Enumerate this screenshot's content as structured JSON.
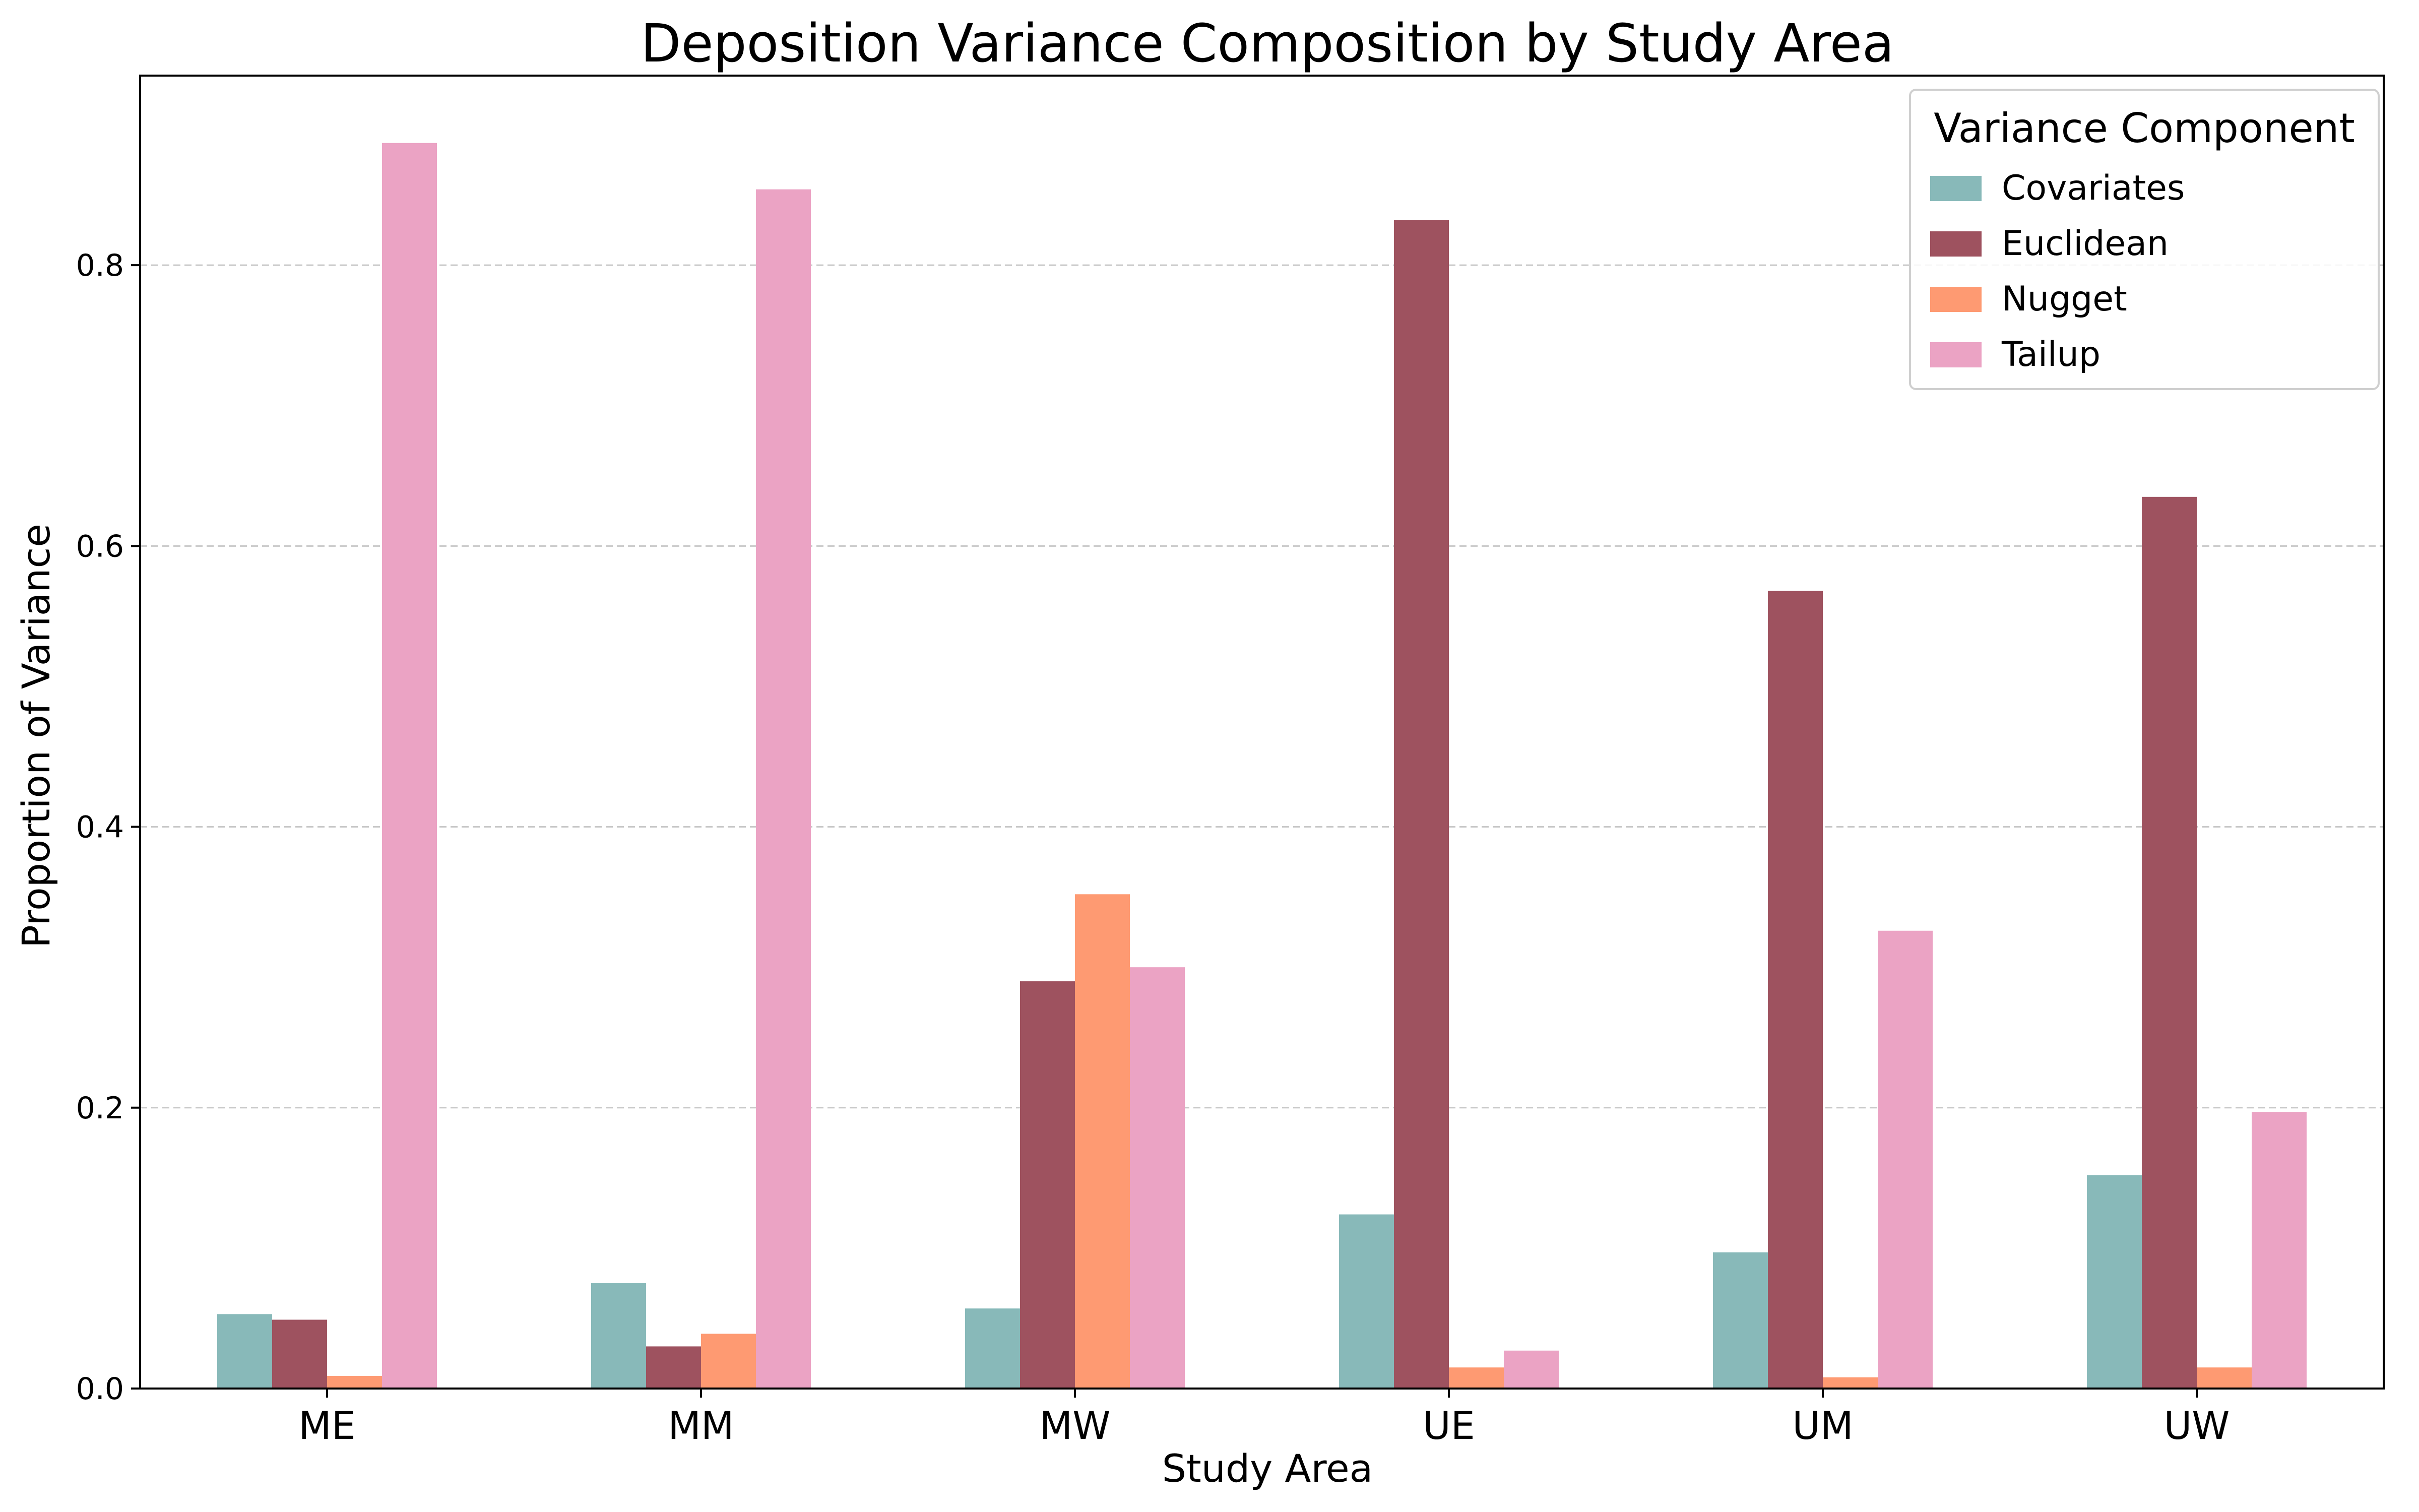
{
  "chart_data": {
    "type": "bar",
    "title": "Deposition Variance Composition by Study Area",
    "xlabel": "Study Area",
    "ylabel": "Proportion of Variance",
    "categories": [
      "ME",
      "MM",
      "MW",
      "UE",
      "UM",
      "UW"
    ],
    "ylim": [
      0,
      0.935
    ],
    "yticks": [
      "0.0",
      "0.2",
      "0.4",
      "0.6",
      "0.8"
    ],
    "ytick_values": [
      0,
      0.2,
      0.4,
      0.6,
      0.8
    ],
    "grid": "y-dashed",
    "legend": {
      "title": "Variance Component",
      "placement": "top-right"
    },
    "series": [
      {
        "name": "Covariates",
        "color": "#88b9b9",
        "values": [
          0.053,
          0.075,
          0.057,
          0.124,
          0.097,
          0.152
        ]
      },
      {
        "name": "Euclidean",
        "color": "#9e525f",
        "values": [
          0.049,
          0.03,
          0.29,
          0.832,
          0.568,
          0.635
        ]
      },
      {
        "name": "Nugget",
        "color": "#fe9a72",
        "values": [
          0.009,
          0.039,
          0.352,
          0.015,
          0.008,
          0.015
        ]
      },
      {
        "name": "Tailup",
        "color": "#eba3c4",
        "values": [
          0.887,
          0.854,
          0.3,
          0.027,
          0.326,
          0.197
        ]
      }
    ]
  }
}
